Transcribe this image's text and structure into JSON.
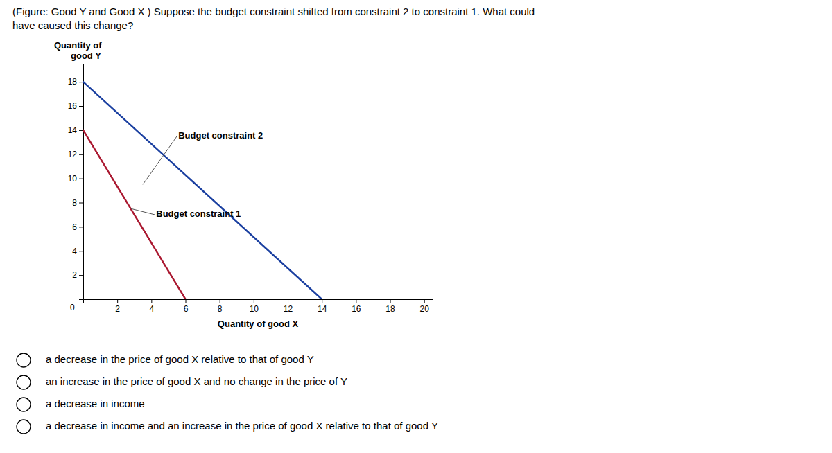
{
  "chart_data": {
    "type": "line",
    "title": [
      "(Figure: Good Y and Good X ) Suppose the budget constraint shifted from constraint 2 to constraint 1. What could",
      "have caused this change?"
    ],
    "ylabel": [
      "Quantity of",
      "good Y"
    ],
    "xlabel": "Quantity of good X",
    "series": [
      {
        "color": "#1a3fa0",
        "x": [
          0,
          14
        ],
        "values": [
          18,
          0
        ]
      },
      {
        "color": "#aa1830",
        "x": [
          0,
          6
        ],
        "values": [
          14,
          0
        ]
      }
    ],
    "annotations": [
      {
        "text": "Budget constraint 2",
        "x": 5.5,
        "y": 13.5,
        "point": [
          3.5,
          9.5
        ]
      },
      {
        "text": "Budget constraint 1",
        "x": 4.2,
        "y": 7.0,
        "point": [
          2.8,
          7.5
        ]
      },
      {
        "text": "0",
        "x": -0.5,
        "y": -0.4
      }
    ],
    "xlim": [
      0,
      20.5
    ],
    "ylim": [
      0,
      19.5
    ],
    "xticks": [
      2,
      4,
      6,
      8,
      10,
      12,
      14,
      16,
      18,
      20
    ],
    "yticks": [
      2,
      4,
      6,
      8,
      10,
      12,
      14,
      16,
      18
    ],
    "options": [
      "a decrease in the price of good X relative to that of good Y",
      "an increase in the price of good X and no change in the price of Y",
      "a decrease in income",
      "a decrease in income and an increase in the price of good X relative to that of good Y"
    ]
  }
}
